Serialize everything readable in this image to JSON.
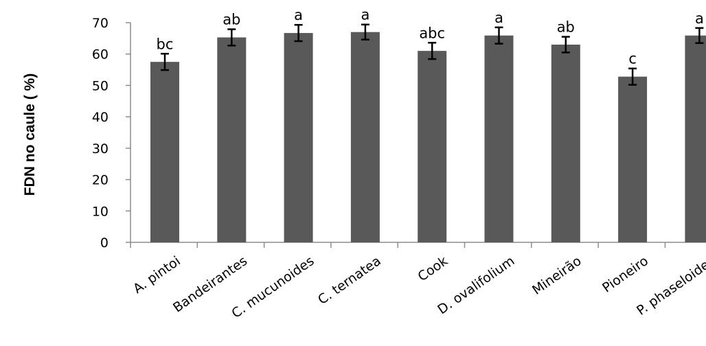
{
  "chart_data": {
    "type": "bar",
    "title": "",
    "xlabel": "",
    "ylabel": "FDN no caule ( %)",
    "ylim": [
      0,
      70
    ],
    "yticks": [
      "0",
      "10",
      "20",
      "30",
      "40",
      "50",
      "60",
      "70"
    ],
    "grid": false,
    "legend": "none",
    "bar_color": "#595959",
    "categories": [
      "A. pintoi",
      "Bandeirantes",
      "C. mucunoides",
      "C. ternatea",
      "Cook",
      "D. ovalifolium",
      "Mineirão",
      "Pioneiro",
      "P. phaseloides"
    ],
    "values": [
      57.5,
      65.3,
      66.7,
      67.0,
      61.0,
      65.9,
      63.0,
      52.8,
      65.9
    ],
    "errors": [
      2.6,
      2.6,
      2.6,
      2.4,
      2.6,
      2.6,
      2.5,
      2.6,
      2.4
    ],
    "labels": [
      "bc",
      "ab",
      "a",
      "a",
      "abc",
      "a",
      "ab",
      "c",
      "a"
    ]
  }
}
